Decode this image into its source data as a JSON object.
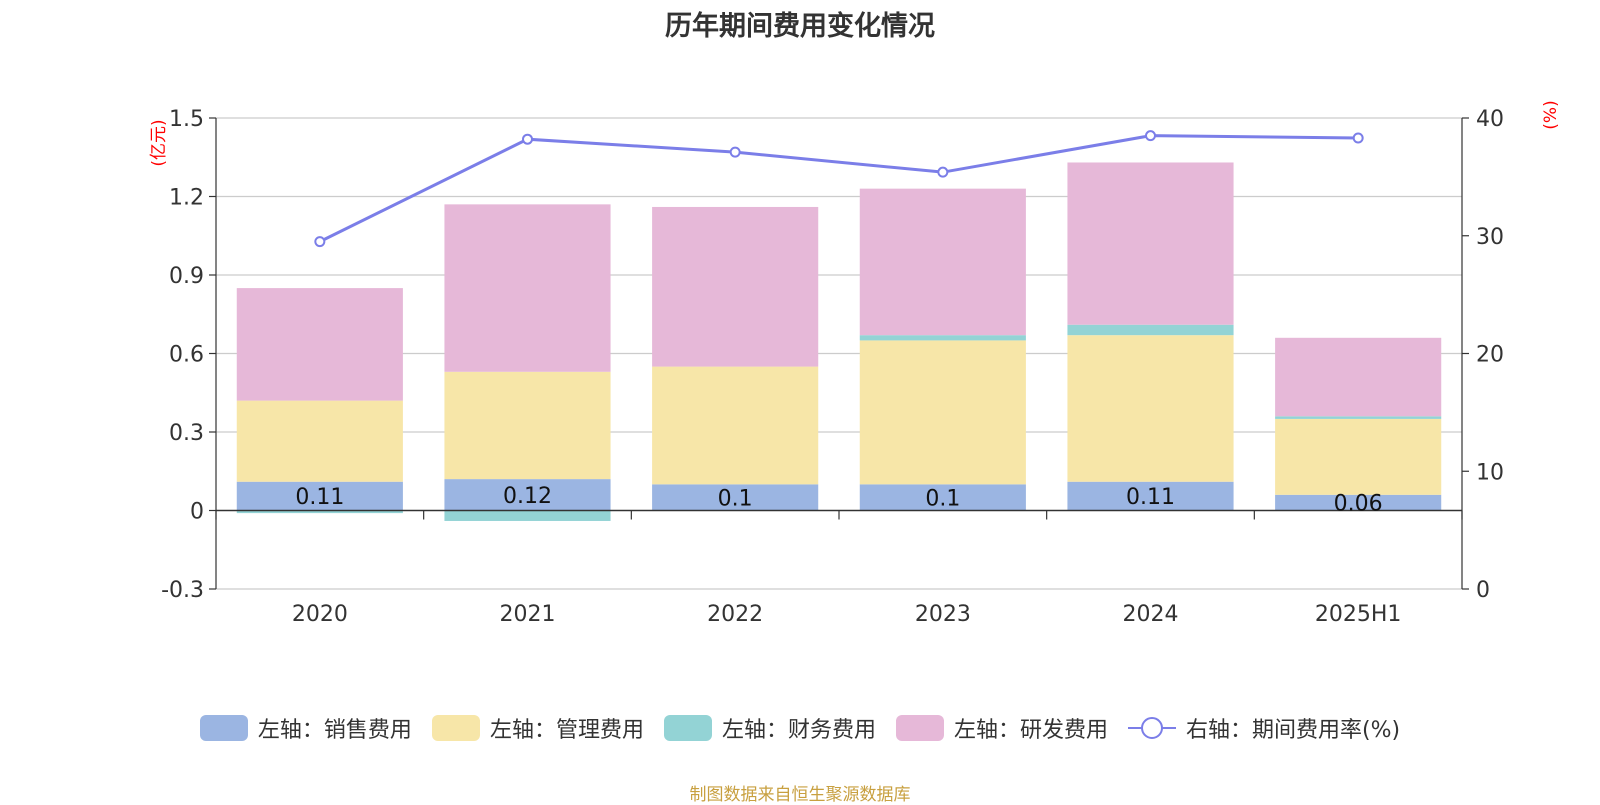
{
  "chart_data": {
    "type": "bar",
    "title": "历年期间费用变化情况",
    "categories": [
      "2020",
      "2021",
      "2022",
      "2023",
      "2024",
      "2025H1"
    ],
    "left_axis": {
      "unit_label": "(亿元)",
      "ylim": [
        -0.3,
        1.5
      ],
      "ticks": [
        -0.3,
        0,
        0.3,
        0.6,
        0.9,
        1.2,
        1.5
      ],
      "tick_labels": [
        "-0.3",
        "0",
        "0.3",
        "0.6",
        "0.9",
        "1.2",
        "1.5"
      ]
    },
    "right_axis": {
      "unit_label": "(%)",
      "ylim": [
        0,
        40
      ],
      "ticks": [
        0,
        10,
        20,
        30,
        40
      ],
      "tick_labels": [
        "0",
        "10",
        "20",
        "30",
        "40"
      ]
    },
    "series": [
      {
        "name": "左轴：销售费用",
        "type": "bar",
        "stack": "left",
        "color": "#9bb5e2",
        "values": [
          0.11,
          0.12,
          0.1,
          0.1,
          0.11,
          0.06
        ],
        "data_labels": [
          "0.11",
          "0.12",
          "0.1",
          "0.1",
          "0.11",
          "0.06"
        ]
      },
      {
        "name": "左轴：管理费用",
        "type": "bar",
        "stack": "left",
        "color": "#f7e6a8",
        "values": [
          0.31,
          0.41,
          0.45,
          0.55,
          0.56,
          0.29
        ]
      },
      {
        "name": "左轴：财务费用",
        "type": "bar",
        "stack": "left",
        "color": "#93d3d5",
        "values": [
          -0.01,
          -0.04,
          0.0,
          0.02,
          0.04,
          0.01
        ]
      },
      {
        "name": "左轴：研发费用",
        "type": "bar",
        "stack": "left",
        "color": "#e6b8d8",
        "values": [
          0.43,
          0.64,
          0.61,
          0.56,
          0.62,
          0.3
        ]
      },
      {
        "name": "右轴：期间费用率(%)",
        "type": "line",
        "axis": "right",
        "color": "#7b7ee8",
        "values": [
          29.5,
          38.2,
          37.1,
          35.4,
          38.5,
          38.3
        ]
      }
    ],
    "grid": true,
    "legend_position": "bottom"
  },
  "footer": {
    "source": "制图数据来自恒生聚源数据库"
  }
}
